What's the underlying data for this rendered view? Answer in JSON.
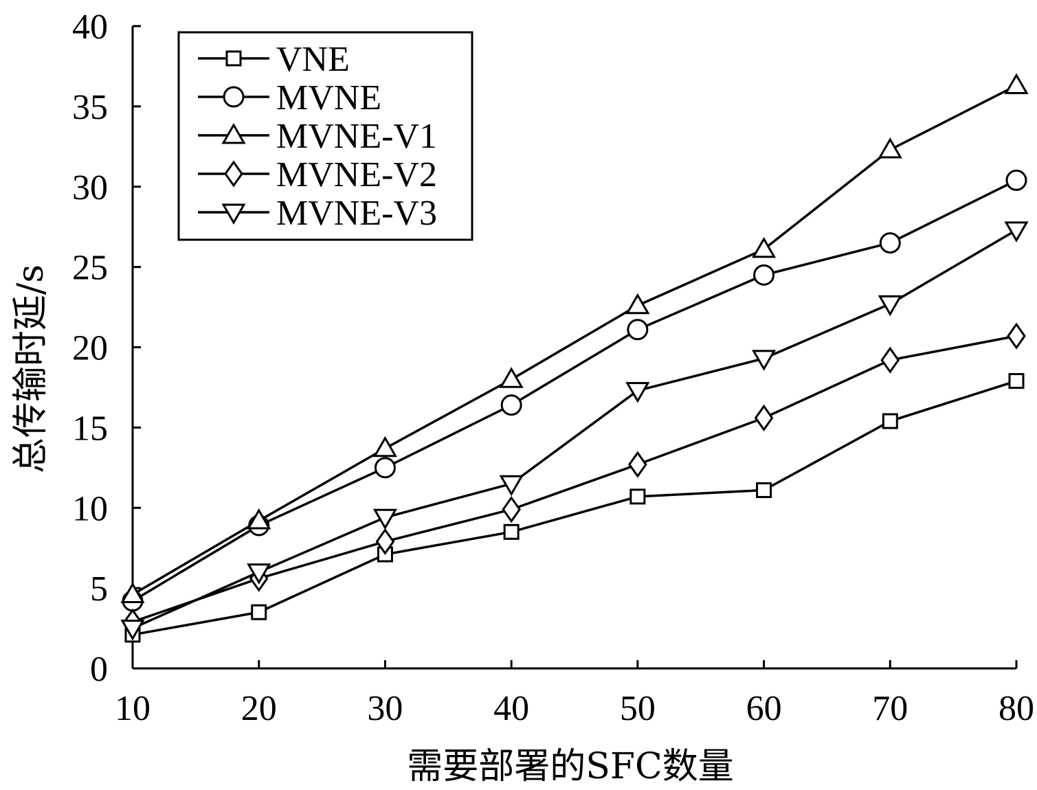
{
  "chart_data": {
    "type": "line",
    "title": "",
    "xlabel": "需要部署的SFC数量",
    "ylabel": "总传输时延/s",
    "x": [
      10,
      20,
      30,
      40,
      50,
      60,
      70,
      80
    ],
    "xlim": [
      10,
      80
    ],
    "ylim": [
      0,
      40
    ],
    "xticks": [
      "10",
      "20",
      "30",
      "40",
      "50",
      "60",
      "70",
      "80"
    ],
    "yticks": [
      "0",
      "5",
      "10",
      "15",
      "20",
      "25",
      "30",
      "35",
      "40"
    ],
    "grid": false,
    "legend_position": "top-left",
    "series": [
      {
        "name": "VNE",
        "marker": "square",
        "values": [
          2.1,
          3.5,
          7.1,
          8.5,
          10.7,
          11.1,
          15.4,
          17.9
        ]
      },
      {
        "name": "MVNE",
        "marker": "circle",
        "values": [
          4.2,
          8.9,
          12.5,
          16.4,
          21.1,
          24.5,
          26.5,
          30.4
        ]
      },
      {
        "name": "MVNE-V1",
        "marker": "triangle-up",
        "values": [
          4.6,
          9.2,
          13.7,
          18.0,
          22.6,
          26.1,
          32.3,
          36.3
        ]
      },
      {
        "name": "MVNE-V2",
        "marker": "diamond",
        "values": [
          2.9,
          5.6,
          7.9,
          9.9,
          12.7,
          15.6,
          19.2,
          20.7
        ]
      },
      {
        "name": "MVNE-V3",
        "marker": "triangle-down",
        "values": [
          2.5,
          6.0,
          9.4,
          11.5,
          17.3,
          19.3,
          22.7,
          27.3
        ]
      }
    ]
  }
}
